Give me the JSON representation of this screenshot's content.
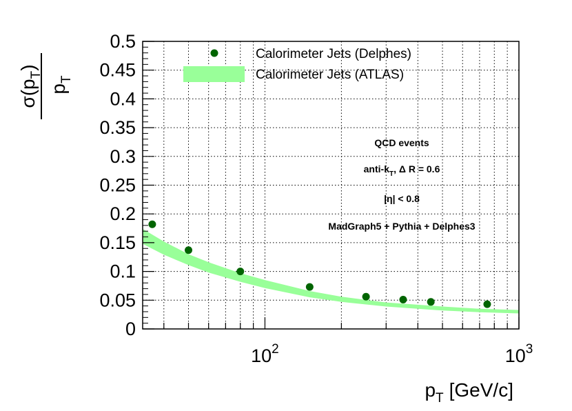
{
  "chart_data": {
    "type": "scatter",
    "xscale": "log",
    "xlim": [
      33,
      1000
    ],
    "ylim": [
      0,
      0.5
    ],
    "grid": true,
    "legend_position": "top",
    "xlabel": "p",
    "xlabel_sub": "T",
    "xlabel_unit": "[GeV/c]",
    "ylabel_num_main": "σ(p",
    "ylabel_num_sub": "T",
    "ylabel_num_close": ")",
    "ylabel_den_main": "p",
    "ylabel_den_sub": "T",
    "y_ticks": [
      "0",
      "0.05",
      "0.1",
      "0.15",
      "0.2",
      "0.25",
      "0.3",
      "0.35",
      "0.4",
      "0.45",
      "0.5"
    ],
    "x_ticks": [
      {
        "base": "10",
        "exp": "2",
        "value": 100
      },
      {
        "base": "10",
        "exp": "3",
        "value": 1000
      }
    ],
    "series": [
      {
        "name": "Calorimeter Jets (Delphes)",
        "kind": "points",
        "color": "#006400",
        "x": [
          36,
          50,
          80,
          150,
          250,
          350,
          450,
          750
        ],
        "y": [
          0.182,
          0.137,
          0.1,
          0.073,
          0.056,
          0.051,
          0.047,
          0.043
        ]
      },
      {
        "name": "Calorimeter Jets (ATLAS)",
        "kind": "band",
        "color": "#99ff99",
        "x": [
          33,
          40,
          50,
          60,
          80,
          100,
          150,
          200,
          300,
          500,
          700,
          1000
        ],
        "y_low": [
          0.148,
          0.129,
          0.111,
          0.098,
          0.082,
          0.071,
          0.055,
          0.047,
          0.039,
          0.032,
          0.029,
          0.027
        ],
        "y_high": [
          0.174,
          0.152,
          0.13,
          0.116,
          0.097,
          0.085,
          0.066,
          0.056,
          0.046,
          0.039,
          0.035,
          0.033
        ]
      }
    ],
    "annotations": {
      "line1": "QCD events",
      "line2_main": "anti-k",
      "line2_sub": "T",
      "line2_rest": ", Δ R = 0.6",
      "line3": "|η| < 0.8",
      "line4": "MadGraph5 + Pythia + Delphes3"
    }
  }
}
